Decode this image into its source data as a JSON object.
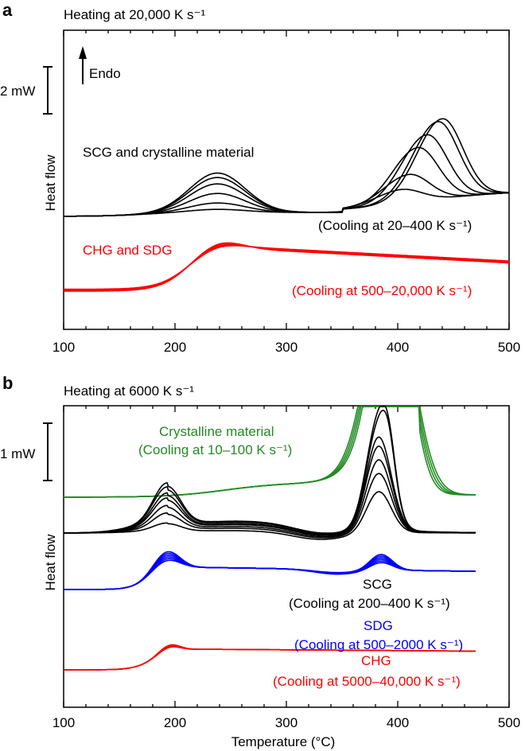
{
  "chart_data": [
    {
      "panel": "a",
      "type": "line",
      "title": "Heating at 20,000 K s⁻¹",
      "xlabel": "",
      "ylabel": "Heat flow",
      "xlim": [
        100,
        500
      ],
      "xticks": [
        "100",
        "200",
        "300",
        "400",
        "500"
      ],
      "scale_bar": {
        "label": "2 mW",
        "value_mW": 2
      },
      "arrow_label": "Endo",
      "groups": [
        {
          "name": "SCG and crystalline material",
          "annotation": "(Cooling at 20–400 K s⁻¹)",
          "color": "#000000",
          "curves": [
            {
              "peak1": 0.62,
              "peak2_x": 440,
              "peak2_h": 6.8
            },
            {
              "peak1": 0.55,
              "peak2_x": 436,
              "peak2_h": 6.6
            },
            {
              "peak1": 0.45,
              "peak2_x": 426,
              "peak2_h": 5.6
            },
            {
              "peak1": 0.3,
              "peak2_x": 418,
              "peak2_h": 4.6
            },
            {
              "peak1": 0.15,
              "peak2_x": 410,
              "peak2_h": 2.4
            },
            {
              "peak1": 0.05,
              "peak2_x": 403,
              "peak2_h": 1.2
            }
          ]
        },
        {
          "name": "CHG and SDG",
          "annotation": "(Cooling at 500–20,000 K s⁻¹)",
          "color": "#ff0000",
          "curves": [
            {
              "peak1": 0.5
            },
            {
              "peak1": 0.4
            },
            {
              "peak1": 0.3
            },
            {
              "peak1": 0.2
            }
          ]
        }
      ]
    },
    {
      "panel": "b",
      "type": "line",
      "title": "Heating at 6000 K s⁻¹",
      "xlabel": "Temperature (°C)",
      "ylabel": "Heat flow",
      "xlim": [
        100,
        500
      ],
      "xticks": [
        "100",
        "200",
        "300",
        "400",
        "500"
      ],
      "scale_bar": {
        "label": "1 mW",
        "value_mW": 1
      },
      "groups": [
        {
          "name": "Crystalline material",
          "annotation": "(Cooling at 10–100 K s⁻¹)",
          "color": "#228B22"
        },
        {
          "name": "SCG",
          "annotation": "(Cooling at 200–400 K s⁻¹)",
          "color": "#000000"
        },
        {
          "name": "SDG",
          "annotation": "(Cooling at 500–2000 K s⁻¹)",
          "color": "#0000ff"
        },
        {
          "name": "CHG",
          "annotation": "(Cooling at 5000–40,000 K s⁻¹)",
          "color": "#ff0000"
        }
      ]
    }
  ]
}
